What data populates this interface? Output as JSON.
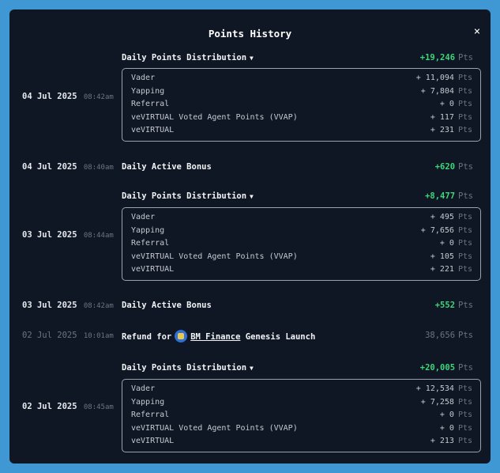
{
  "modal": {
    "title": "Points History",
    "close": "×"
  },
  "pts": "Pts",
  "entries": [
    {
      "date": "04 Jul 2025",
      "time": "08:42am",
      "label": "Daily Points Distribution",
      "total": "+19,246",
      "items": [
        {
          "name": "Vader",
          "value": "+ 11,094"
        },
        {
          "name": "Yapping",
          "value": "+ 7,804"
        },
        {
          "name": "Referral",
          "value": "+ 0"
        },
        {
          "name": "veVIRTUAL Voted Agent Points (VVAP)",
          "value": "+ 117"
        },
        {
          "name": "veVIRTUAL",
          "value": "+ 231"
        }
      ]
    },
    {
      "date": "04 Jul 2025",
      "time": "08:40am",
      "label": "Daily Active Bonus",
      "total": "+620"
    },
    {
      "date": "03 Jul 2025",
      "time": "08:44am",
      "label": "Daily Points Distribution",
      "total": "+8,477",
      "items": [
        {
          "name": "Vader",
          "value": "+ 495"
        },
        {
          "name": "Yapping",
          "value": "+ 7,656"
        },
        {
          "name": "Referral",
          "value": "+ 0"
        },
        {
          "name": "veVIRTUAL Voted Agent Points (VVAP)",
          "value": "+ 105"
        },
        {
          "name": "veVIRTUAL",
          "value": "+ 221"
        }
      ]
    },
    {
      "date": "03 Jul 2025",
      "time": "08:42am",
      "label": "Daily Active Bonus",
      "total": "+552"
    },
    {
      "date": "02 Jul 2025",
      "time": "10:01am",
      "label_prefix": "Refund for",
      "label_link": "BM Finance",
      "label_suffix": "Genesis Launch",
      "total": "38,656"
    },
    {
      "date": "02 Jul 2025",
      "time": "08:45am",
      "label": "Daily Points Distribution",
      "total": "+20,005",
      "items": [
        {
          "name": "Vader",
          "value": "+ 12,534"
        },
        {
          "name": "Yapping",
          "value": "+ 7,258"
        },
        {
          "name": "Referral",
          "value": "+ 0"
        },
        {
          "name": "veVIRTUAL Voted Agent Points (VVAP)",
          "value": "+ 0"
        },
        {
          "name": "veVIRTUAL",
          "value": "+ 213"
        }
      ]
    }
  ],
  "colors": {
    "positive": "#3fd47a",
    "muted": "#6b7480",
    "background": "#0f1724",
    "frame": "#3f97d3"
  },
  "icons": {
    "close": "close-icon",
    "dropdown": "chevron-down-icon",
    "project": "bm-finance-logo-icon"
  }
}
